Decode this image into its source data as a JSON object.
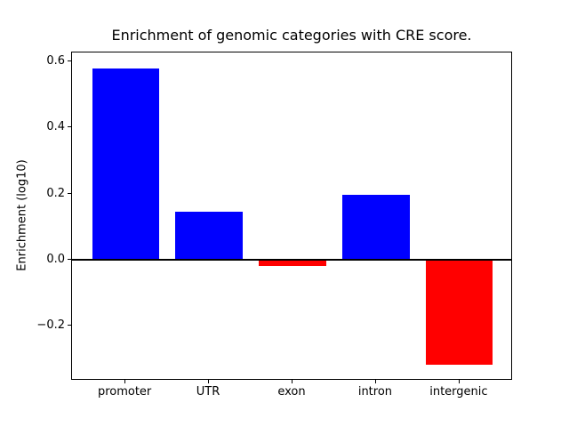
{
  "chart_data": {
    "type": "bar",
    "title": "Enrichment of genomic categories with CRE score.",
    "xlabel": "",
    "ylabel": "Enrichment (log10)",
    "categories": [
      "promoter",
      "UTR",
      "exon",
      "intron",
      "intergenic"
    ],
    "values": [
      0.58,
      0.145,
      -0.02,
      0.195,
      -0.32
    ],
    "bar_colors": [
      "#0000ff",
      "#0000ff",
      "#ff0000",
      "#0000ff",
      "#ff0000"
    ],
    "positive_color": "#0000ff",
    "negative_color": "#ff0000",
    "yticks": {
      "values": [
        0.6,
        0.4,
        0.2,
        0.0,
        -0.2
      ],
      "labels": [
        "0.6",
        "0.4",
        "0.2",
        "0.0",
        "−0.2"
      ]
    },
    "ylim": [
      -0.368,
      0.628
    ],
    "xlim": [
      -0.64,
      4.64
    ],
    "bar_width": 0.8,
    "zero_line": true,
    "grid": false,
    "legend": false,
    "axis_color": "#000000",
    "text_color": "#000000",
    "background_color": "#ffffff"
  }
}
